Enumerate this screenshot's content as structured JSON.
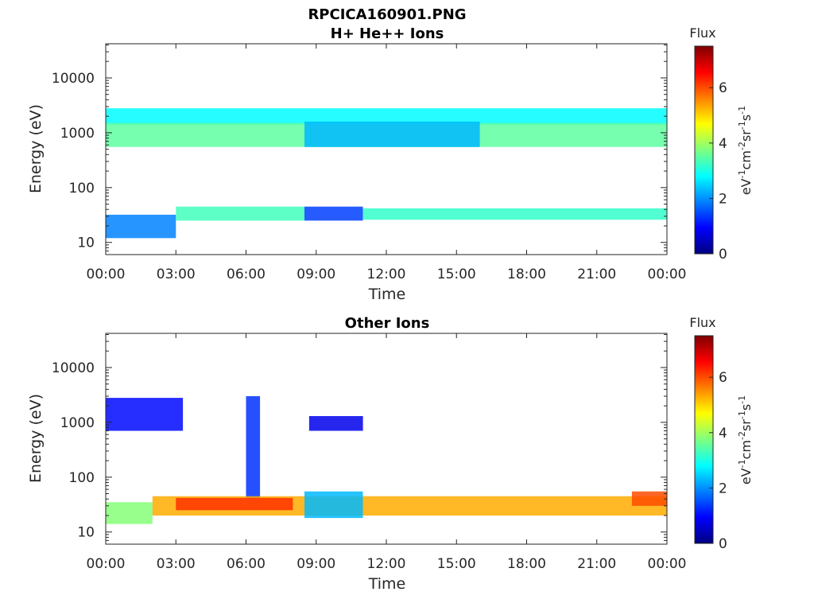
{
  "figure": {
    "title": "RPCICA160901.PNG"
  },
  "colormap": [
    "#00007f",
    "#0000ff",
    "#007fff",
    "#00ffff",
    "#7fff7f",
    "#ffff00",
    "#ff7f00",
    "#ff0000",
    "#7f0000"
  ],
  "chart_data": [
    {
      "type": "heatmap",
      "title": "H+ He++ Ions",
      "xlabel": "Time",
      "ylabel": "Energy (eV)",
      "x_ticks": [
        "00:00",
        "03:00",
        "06:00",
        "09:00",
        "12:00",
        "15:00",
        "18:00",
        "21:00",
        "00:00"
      ],
      "y_ticks": [
        "10",
        "100",
        "1000",
        "10000"
      ],
      "xlim_hours": [
        0,
        24
      ],
      "ylim_eV": [
        6,
        42000
      ],
      "y_scale": "log",
      "colorbar": {
        "title": "Flux",
        "unit": "eV-1cm-2sr-1s-1",
        "range": [
          0,
          7.5
        ],
        "ticks": [
          "0",
          "2",
          "4",
          "6"
        ]
      },
      "bands": [
        {
          "t_start": 0.0,
          "t_end": 24.0,
          "energy_low": 1400,
          "energy_high": 2800,
          "flux": 2.8
        },
        {
          "t_start": 0.0,
          "t_end": 24.0,
          "energy_low": 550,
          "energy_high": 1500,
          "flux": 3.5
        },
        {
          "t_start": 8.5,
          "t_end": 16.0,
          "energy_low": 550,
          "energy_high": 1600,
          "flux": 2.3
        },
        {
          "t_start": 0.0,
          "t_end": 3.0,
          "energy_low": 12,
          "energy_high": 32,
          "flux": 1.9
        },
        {
          "t_start": 3.0,
          "t_end": 8.5,
          "energy_low": 25,
          "energy_high": 45,
          "flux": 3.3
        },
        {
          "t_start": 8.5,
          "t_end": 11.0,
          "energy_low": 25,
          "energy_high": 45,
          "flux": 1.4
        },
        {
          "t_start": 11.0,
          "t_end": 24.0,
          "energy_low": 26,
          "energy_high": 42,
          "flux": 3.2
        }
      ]
    },
    {
      "type": "heatmap",
      "title": "Other Ions",
      "xlabel": "Time",
      "ylabel": "Energy (eV)",
      "x_ticks": [
        "00:00",
        "03:00",
        "06:00",
        "09:00",
        "12:00",
        "15:00",
        "18:00",
        "21:00",
        "00:00"
      ],
      "y_ticks": [
        "10",
        "100",
        "1000",
        "10000"
      ],
      "xlim_hours": [
        0,
        24
      ],
      "ylim_eV": [
        6,
        42000
      ],
      "y_scale": "log",
      "colorbar": {
        "title": "Flux",
        "unit": "eV-1cm-2sr-1s-1",
        "range": [
          0,
          7.5
        ],
        "ticks": [
          "0",
          "2",
          "4",
          "6"
        ]
      },
      "bands": [
        {
          "t_start": 0.0,
          "t_end": 3.3,
          "energy_low": 1300,
          "energy_high": 2800,
          "flux": 1.0
        },
        {
          "t_start": 0.0,
          "t_end": 3.3,
          "energy_low": 700,
          "energy_high": 1300,
          "flux": 1.0
        },
        {
          "t_start": 6.0,
          "t_end": 6.6,
          "energy_low": 40,
          "energy_high": 3000,
          "flux": 1.3
        },
        {
          "t_start": 8.7,
          "t_end": 11.0,
          "energy_low": 700,
          "energy_high": 1300,
          "flux": 0.8
        },
        {
          "t_start": 0.0,
          "t_end": 2.0,
          "energy_low": 14,
          "energy_high": 35,
          "flux": 3.8
        },
        {
          "t_start": 2.0,
          "t_end": 24.0,
          "energy_low": 20,
          "energy_high": 45,
          "flux": 5.3
        },
        {
          "t_start": 3.0,
          "t_end": 8.0,
          "energy_low": 25,
          "energy_high": 42,
          "flux": 6.2
        },
        {
          "t_start": 8.5,
          "t_end": 11.0,
          "energy_low": 18,
          "energy_high": 55,
          "flux": 2.3
        },
        {
          "t_start": 22.5,
          "t_end": 24.0,
          "energy_low": 30,
          "energy_high": 55,
          "flux": 6.0
        }
      ]
    }
  ]
}
